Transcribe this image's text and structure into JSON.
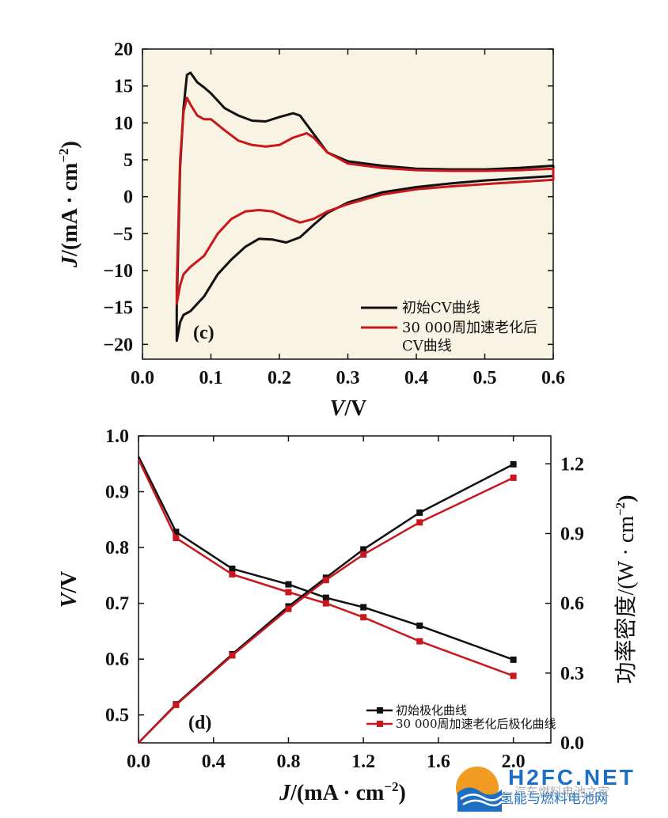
{
  "chart_data": [
    {
      "type": "line",
      "panel_label": "(c)",
      "xlabel": "V/V",
      "xlabel_var": "V",
      "xlabel_unit": "/V",
      "ylabel": "J/(mA · cm⁻²)",
      "ylabel_var": "J",
      "ylabel_unit": "/(mA · cm",
      "ylabel_sup": "−2",
      "ylabel_tail": ")",
      "xlim": [
        0.0,
        0.6
      ],
      "ylim": [
        -22,
        20
      ],
      "xticks": [
        0.0,
        0.1,
        0.2,
        0.3,
        0.4,
        0.5,
        0.6
      ],
      "xtick_labels": [
        "0.0",
        "0.1",
        "0.2",
        "0.3",
        "0.4",
        "0.5",
        "0.6"
      ],
      "yticks": [
        -20,
        -15,
        -10,
        -5,
        0,
        5,
        10,
        15,
        20
      ],
      "ytick_labels": [
        "−20",
        "−15",
        "−10",
        "−5",
        "0",
        "5",
        "10",
        "15",
        "20"
      ],
      "legend": [
        "初始CV曲线",
        "30 000周加速老化后",
        "CV曲线"
      ],
      "series": [
        {
          "name": "初始CV曲线",
          "color": "#111111",
          "x": [
            0.05,
            0.055,
            0.06,
            0.065,
            0.07,
            0.08,
            0.09,
            0.1,
            0.12,
            0.14,
            0.16,
            0.18,
            0.2,
            0.22,
            0.23,
            0.25,
            0.27,
            0.3,
            0.35,
            0.4,
            0.45,
            0.5,
            0.55,
            0.6,
            0.6,
            0.55,
            0.5,
            0.45,
            0.4,
            0.35,
            0.3,
            0.27,
            0.25,
            0.23,
            0.21,
            0.19,
            0.17,
            0.15,
            0.13,
            0.11,
            0.09,
            0.07,
            0.06,
            0.055,
            0.05
          ],
          "y": [
            -15,
            4,
            12,
            16.5,
            16.8,
            15.5,
            14.8,
            14,
            12,
            11,
            10.3,
            10.2,
            10.8,
            11.3,
            11.0,
            8.5,
            6.0,
            4.8,
            4.2,
            3.8,
            3.7,
            3.7,
            3.9,
            4.2,
            2.8,
            2.5,
            2.2,
            1.8,
            1.3,
            0.6,
            -0.8,
            -2.2,
            -3.8,
            -5.5,
            -6.2,
            -5.8,
            -5.7,
            -6.8,
            -8.5,
            -10.5,
            -13.5,
            -15.5,
            -16.0,
            -17.0,
            -19.5
          ]
        },
        {
          "name": "30 000周加速老化后CV曲线",
          "color": "#c8181e",
          "x": [
            0.05,
            0.055,
            0.06,
            0.065,
            0.07,
            0.08,
            0.09,
            0.1,
            0.12,
            0.14,
            0.16,
            0.18,
            0.2,
            0.22,
            0.24,
            0.25,
            0.27,
            0.3,
            0.35,
            0.4,
            0.45,
            0.5,
            0.55,
            0.6,
            0.6,
            0.55,
            0.5,
            0.45,
            0.4,
            0.35,
            0.3,
            0.27,
            0.25,
            0.23,
            0.21,
            0.19,
            0.17,
            0.15,
            0.13,
            0.11,
            0.09,
            0.07,
            0.06,
            0.055,
            0.05
          ],
          "y": [
            -12,
            5,
            11.5,
            13.4,
            12.5,
            11,
            10.5,
            10.5,
            9.0,
            7.6,
            7.0,
            6.8,
            7.0,
            8.0,
            8.6,
            8.0,
            6.0,
            4.5,
            3.9,
            3.6,
            3.5,
            3.5,
            3.6,
            3.8,
            2.3,
            2.0,
            1.7,
            1.4,
            1.0,
            0.3,
            -1.0,
            -2.0,
            -3.0,
            -3.5,
            -2.8,
            -2.0,
            -1.8,
            -2.0,
            -3.0,
            -5.0,
            -8.0,
            -9.5,
            -10.5,
            -12.0,
            -14.5
          ]
        }
      ]
    },
    {
      "type": "line",
      "panel_label": "(d)",
      "xlabel": "J/(mA · cm⁻²)",
      "xlabel_var": "J",
      "xlabel_unit": "/(mA · cm",
      "xlabel_sup": "−2",
      "xlabel_tail": ")",
      "ylabel_left": "V/V",
      "ylabel_left_var": "V",
      "ylabel_left_unit": "/V",
      "ylabel_right": "功率密度/(W · cm⁻²)",
      "ylabel_right_main": "功率密度/(W · cm",
      "ylabel_right_sup": "−2",
      "ylabel_right_tail": ")",
      "xlim": [
        0.0,
        2.2
      ],
      "ylim_left": [
        0.45,
        1.0
      ],
      "ylim_right": [
        0.0,
        1.32
      ],
      "xticks": [
        0.0,
        0.4,
        0.8,
        1.2,
        1.6,
        2.0
      ],
      "xtick_labels": [
        "0.0",
        "0.4",
        "0.8",
        "1.2",
        "1.6",
        "2.0"
      ],
      "yticks_left": [
        0.5,
        0.6,
        0.7,
        0.8,
        0.9,
        1.0
      ],
      "ytick_labels_left": [
        "0.5",
        "0.6",
        "0.7",
        "0.8",
        "0.9",
        "1.0"
      ],
      "yticks_right": [
        0.0,
        0.3,
        0.6,
        0.9,
        1.2
      ],
      "ytick_labels_right": [
        "0.0",
        "0.3",
        "0.6",
        "0.9",
        "1.2"
      ],
      "legend": [
        "初始极化曲线",
        "30 000周加速老化后极化曲线"
      ],
      "series": [
        {
          "name": "初始极化曲线 (V)",
          "axis": "left",
          "color": "#111111",
          "x": [
            0.0,
            0.2,
            0.5,
            0.8,
            1.0,
            1.2,
            1.5,
            2.0
          ],
          "y": [
            0.963,
            0.828,
            0.762,
            0.734,
            0.71,
            0.693,
            0.66,
            0.599
          ]
        },
        {
          "name": "30 000周加速老化后极化曲线 (V)",
          "axis": "left",
          "color": "#c8181e",
          "x": [
            0.0,
            0.2,
            0.5,
            0.8,
            1.0,
            1.2,
            1.5,
            2.0
          ],
          "y": [
            0.958,
            0.817,
            0.752,
            0.72,
            0.7,
            0.675,
            0.632,
            0.57
          ]
        },
        {
          "name": "初始极化曲线 (功率密度)",
          "axis": "right",
          "color": "#111111",
          "x": [
            0.0,
            0.2,
            0.5,
            0.8,
            1.0,
            1.2,
            1.5,
            2.0
          ],
          "y": [
            0.0,
            0.166,
            0.381,
            0.587,
            0.71,
            0.832,
            0.99,
            1.198
          ]
        },
        {
          "name": "30 000周加速老化后极化曲线 (功率密度)",
          "axis": "right",
          "color": "#c8181e",
          "x": [
            0.0,
            0.2,
            0.5,
            0.8,
            1.0,
            1.2,
            1.5,
            2.0
          ],
          "y": [
            0.0,
            0.163,
            0.376,
            0.576,
            0.7,
            0.81,
            0.948,
            1.14
          ]
        }
      ]
    }
  ],
  "watermark": {
    "brand": "H2FC.NET",
    "subtitle": "氢能与燃料电池网",
    "caption": "汽车燃料电池之家"
  }
}
